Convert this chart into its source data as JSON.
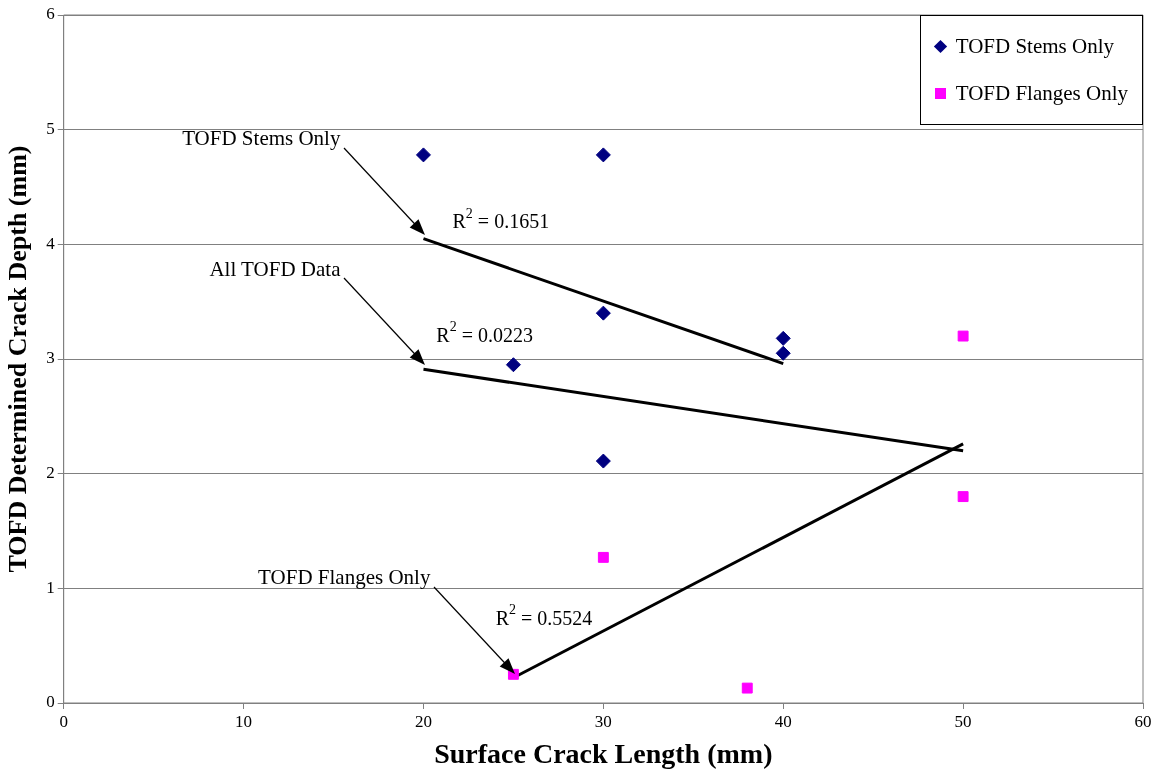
{
  "chart_data": {
    "type": "scatter",
    "xlabel": "Surface Crack Length (mm)",
    "ylabel": "TOFD Determined Crack Depth (mm)",
    "xlim": [
      0,
      60
    ],
    "xticks": [
      0,
      10,
      20,
      30,
      40,
      50,
      60
    ],
    "ylim": [
      0,
      6
    ],
    "yticks": [
      0,
      1,
      2,
      3,
      4,
      5,
      6
    ],
    "grid": "y",
    "legend": "top right",
    "series": [
      {
        "name": "TOFD Stems Only",
        "type": "scatter",
        "marker": "diamond",
        "color": "#000080",
        "x": [
          20,
          30,
          30,
          25,
          30,
          40,
          40
        ],
        "values": [
          4.78,
          4.78,
          3.4,
          2.95,
          2.11,
          3.18,
          3.05
        ]
      },
      {
        "name": "TOFD Flanges Only",
        "type": "scatter",
        "marker": "square",
        "color": "#ff00ff",
        "x": [
          25,
          30,
          38,
          50,
          50
        ],
        "values": [
          0.25,
          1.27,
          0.13,
          3.2,
          1.8
        ]
      },
      {
        "type": "line",
        "marker": "none",
        "color": "#000000",
        "x": [
          20,
          40
        ],
        "values": [
          4.05,
          2.96
        ]
      },
      {
        "type": "line",
        "marker": "none",
        "color": "#000000",
        "x": [
          20,
          50
        ],
        "values": [
          2.91,
          2.2
        ]
      },
      {
        "type": "line",
        "marker": "none",
        "color": "#000000",
        "x": [
          25,
          50
        ],
        "values": [
          0.22,
          2.26
        ]
      }
    ],
    "annotations": [
      "TOFD Stems Only",
      "All TOFD Data",
      "TOFD Flanges Only",
      {
        "text": "R$^{2}$ = 0.1651",
        "x": 24.3,
        "y": 3.82
      },
      {
        "text": "R$^{2}$ = 0.0223",
        "x": 23.4,
        "y": 2.83
      },
      {
        "text": "R$^{2}$ = 0.5524",
        "x": 26.7,
        "y": 0.36
      }
    ]
  }
}
